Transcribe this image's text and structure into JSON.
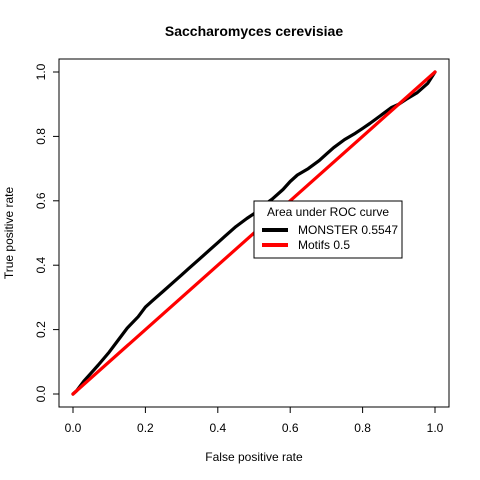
{
  "chart_data": {
    "type": "line",
    "title": "Saccharomyces cerevisiae",
    "xlabel": "False positive rate",
    "ylabel": "True positive rate",
    "xlim": [
      0,
      1
    ],
    "ylim": [
      0,
      1
    ],
    "x_ticks": [
      "0.0",
      "0.2",
      "0.4",
      "0.6",
      "0.8",
      "1.0"
    ],
    "y_ticks": [
      "0.0",
      "0.2",
      "0.4",
      "0.6",
      "0.8",
      "1.0"
    ],
    "grid": false,
    "legend": {
      "title": "Area under ROC curve",
      "position": "center-right",
      "entries": [
        {
          "label": "MONSTER 0.5547",
          "color": "#000000"
        },
        {
          "label": "Motifs 0.5",
          "color": "#ff0000"
        }
      ]
    },
    "series": [
      {
        "color": "#000000",
        "points": [
          [
            0.0,
            0.0
          ],
          [
            0.01,
            0.01
          ],
          [
            0.03,
            0.04
          ],
          [
            0.05,
            0.065
          ],
          [
            0.07,
            0.09
          ],
          [
            0.1,
            0.13
          ],
          [
            0.12,
            0.16
          ],
          [
            0.15,
            0.205
          ],
          [
            0.18,
            0.24
          ],
          [
            0.2,
            0.27
          ],
          [
            0.22,
            0.29
          ],
          [
            0.25,
            0.32
          ],
          [
            0.28,
            0.35
          ],
          [
            0.3,
            0.37
          ],
          [
            0.32,
            0.39
          ],
          [
            0.35,
            0.42
          ],
          [
            0.38,
            0.45
          ],
          [
            0.4,
            0.47
          ],
          [
            0.42,
            0.49
          ],
          [
            0.45,
            0.52
          ],
          [
            0.48,
            0.545
          ],
          [
            0.5,
            0.56
          ],
          [
            0.52,
            0.58
          ],
          [
            0.55,
            0.605
          ],
          [
            0.58,
            0.635
          ],
          [
            0.6,
            0.66
          ],
          [
            0.62,
            0.68
          ],
          [
            0.65,
            0.7
          ],
          [
            0.68,
            0.725
          ],
          [
            0.7,
            0.745
          ],
          [
            0.72,
            0.765
          ],
          [
            0.75,
            0.79
          ],
          [
            0.78,
            0.81
          ],
          [
            0.8,
            0.825
          ],
          [
            0.82,
            0.84
          ],
          [
            0.85,
            0.865
          ],
          [
            0.88,
            0.89
          ],
          [
            0.9,
            0.9
          ],
          [
            0.92,
            0.915
          ],
          [
            0.95,
            0.935
          ],
          [
            0.98,
            0.965
          ],
          [
            1.0,
            1.0
          ]
        ]
      },
      {
        "color": "#ff0000",
        "points": [
          [
            0.0,
            0.0
          ],
          [
            1.0,
            1.0
          ]
        ]
      }
    ]
  }
}
